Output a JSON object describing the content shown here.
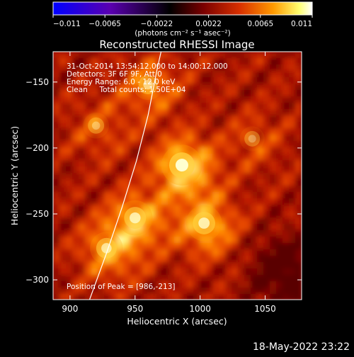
{
  "colorbar": {
    "tick_labels": [
      "−0.011",
      "−0.0065",
      "−0.0022",
      "0.0022",
      "0.0065",
      "0.011"
    ],
    "units_label": "(photons cm⁻² s⁻¹ asec⁻²)",
    "range": [
      -0.011,
      0.011
    ],
    "colors": [
      "#0000ff",
      "#6600aa",
      "#000000",
      "#7a0000",
      "#d83000",
      "#ff9a00",
      "#ffff70",
      "#ffffff"
    ]
  },
  "chart_data": {
    "type": "heatmap",
    "title": "Reconstructed RHESSI Image",
    "xlabel": "Heliocentric X (arcsec)",
    "ylabel": "Heliocentric Y (arcsec)",
    "xlim": [
      887,
      1078
    ],
    "ylim": [
      -315,
      -127
    ],
    "xticks": [
      "900",
      "950",
      "1000",
      "1050"
    ],
    "xtick_values": [
      900,
      950,
      1000,
      1050
    ],
    "yticks": [
      "−150",
      "−200",
      "−250",
      "−300"
    ],
    "ytick_values": [
      -150,
      -200,
      -250,
      -300
    ],
    "annotations": {
      "line1": "31-Oct-2014 13:54:12.000 to 14:00:12.000",
      "line2": "Detectors: 3F 6F 9F, Att 0",
      "line3": "Energy Range: 6.0 - 12.0 keV",
      "line4": "Clean     Total counts: 1.50E+04",
      "peak": "Position of Peak = [986,-213]"
    },
    "sources": [
      {
        "x": 986,
        "y": -213,
        "intensity": 1.0
      },
      {
        "x": 960,
        "y": -152,
        "intensity": 0.55
      },
      {
        "x": 950,
        "y": -253,
        "intensity": 0.75
      },
      {
        "x": 1003,
        "y": -257,
        "intensity": 0.78
      },
      {
        "x": 928,
        "y": -276,
        "intensity": 0.65
      },
      {
        "x": 920,
        "y": -183,
        "intensity": 0.35
      },
      {
        "x": 1040,
        "y": -193,
        "intensity": 0.3
      }
    ],
    "limb_curve": [
      [
        915,
        -315
      ],
      [
        928,
        -280
      ],
      [
        940,
        -245
      ],
      [
        951,
        -210
      ],
      [
        960,
        -175
      ],
      [
        967,
        -140
      ],
      [
        970,
        -127
      ]
    ]
  },
  "footer": {
    "timestamp": "18-May-2022 23:22"
  }
}
